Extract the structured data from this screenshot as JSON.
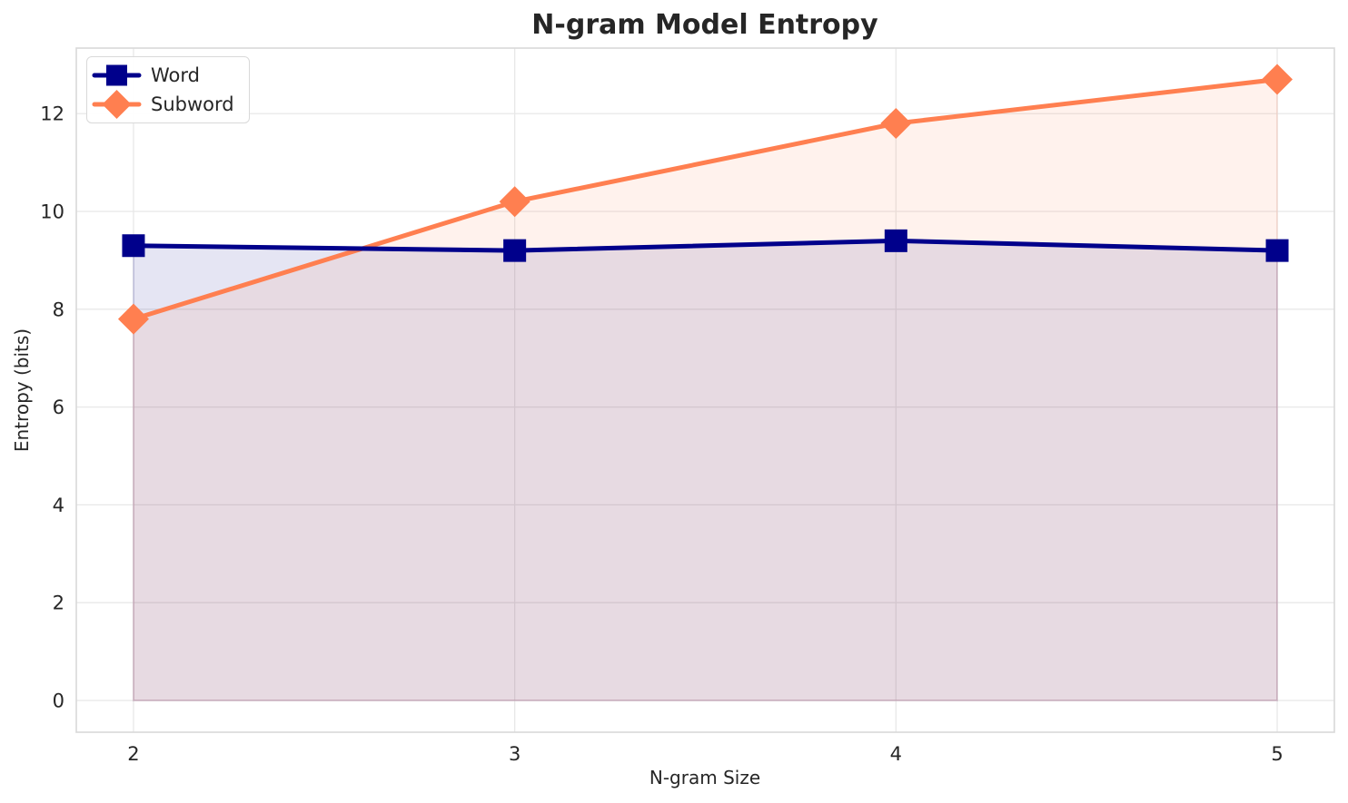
{
  "chart_data": {
    "type": "line",
    "title": "N-gram Model Entropy",
    "xlabel": "N-gram Size",
    "ylabel": "Entropy (bits)",
    "x": [
      2,
      3,
      4,
      5
    ],
    "x_tick_labels": [
      "2",
      "3",
      "4",
      "5"
    ],
    "yticks": [
      0,
      2,
      4,
      6,
      8,
      10,
      12
    ],
    "y_tick_labels": [
      "0",
      "2",
      "4",
      "6",
      "8",
      "10",
      "12"
    ],
    "xlim": [
      1.85,
      5.15
    ],
    "ylim": [
      -0.65,
      13.34
    ],
    "grid": true,
    "legend_position": "upper left",
    "series": [
      {
        "name": "Word",
        "values": [
          9.3,
          9.2,
          9.4,
          9.2
        ],
        "color": "#00008B",
        "marker": "square",
        "fill_to_zero": true,
        "fill_opacity": 0.1,
        "zorder": 2
      },
      {
        "name": "Subword",
        "values": [
          7.8,
          10.2,
          11.8,
          12.7
        ],
        "color": "#FF7F50",
        "marker": "diamond",
        "fill_to_zero": true,
        "fill_opacity": 0.1,
        "zorder": 1
      }
    ],
    "style": {
      "grid_color": "#E8E8E8",
      "spine_color": "#D9D9D9",
      "text_color": "#262626",
      "background": "#FFFFFF",
      "line_width": 5
    }
  }
}
